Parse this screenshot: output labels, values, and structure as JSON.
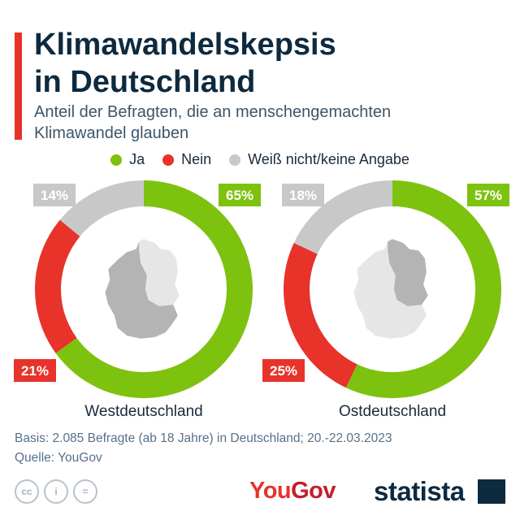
{
  "title_line1": "Klimawandelskepsis",
  "title_line2": "in Deutschland",
  "subtitle_line1": "Anteil der Befragten, die an menschengemachten",
  "subtitle_line2": "Klimawandel glauben",
  "colors": {
    "accent": "#e7332a",
    "ja": "#7dc20f",
    "nein": "#e7332a",
    "unknown": "#c8c8c8",
    "map_light": "#e6e6e6",
    "map_dark": "#b4b4b4"
  },
  "chart_data": [
    {
      "type": "pie",
      "title": "Westdeutschland",
      "categories": [
        "Ja",
        "Nein",
        "Weiß nicht/keine Angabe"
      ],
      "values": [
        65,
        21,
        14
      ],
      "labels": [
        "65%",
        "21%",
        "14%"
      ],
      "legend_position": "top"
    },
    {
      "type": "pie",
      "title": "Ostdeutschland",
      "categories": [
        "Ja",
        "Nein",
        "Weiß nicht/keine Angabe"
      ],
      "values": [
        57,
        25,
        18
      ],
      "labels": [
        "57%",
        "25%",
        "18%"
      ],
      "legend_position": "top"
    }
  ],
  "footer": {
    "basis": "Basis: 2.085 Befragte (ab 18 Jahre) in Deutschland; 20.-22.03.2023",
    "source": "Quelle: YouGov",
    "icons": [
      "cc-icon",
      "person-icon",
      "equals-icon"
    ],
    "icon_glyphs": [
      "cc",
      "i",
      "="
    ]
  },
  "brand": {
    "yougov": "YouGov",
    "statista": "statista"
  }
}
